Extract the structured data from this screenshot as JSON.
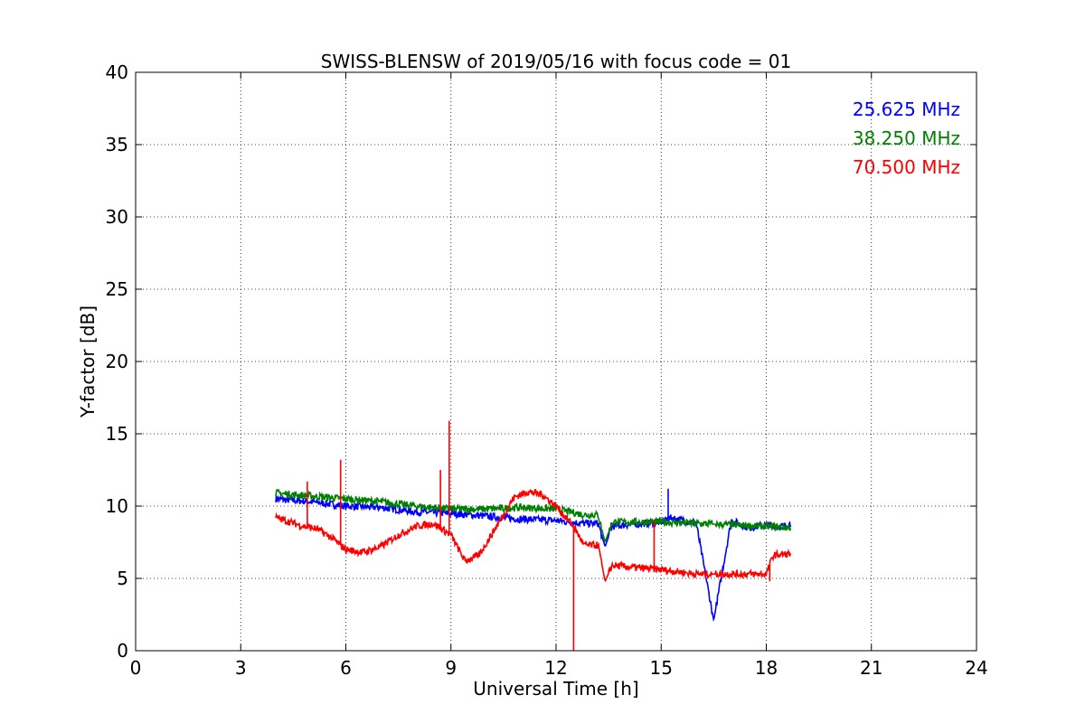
{
  "chart_data": {
    "type": "line",
    "title": "SWISS-BLENSW of 2019/05/16 with focus code = 01",
    "xlabel": "Universal Time [h]",
    "ylabel": "Y-factor [dB]",
    "xlim": [
      0,
      24
    ],
    "ylim": [
      0,
      40
    ],
    "xticks": [
      0,
      3,
      6,
      9,
      12,
      15,
      18,
      21,
      24
    ],
    "yticks": [
      0,
      5,
      10,
      15,
      20,
      25,
      30,
      35,
      40
    ],
    "grid": true,
    "legend_position": "top-right",
    "series": [
      {
        "name": "25.625 MHz",
        "color": "#0000ff",
        "x": [
          4.0,
          5.0,
          6.0,
          7.0,
          8.0,
          9.0,
          10.0,
          11.0,
          12.0,
          12.8,
          13.2,
          13.4,
          13.6,
          14.0,
          15.0,
          15.3,
          16.0,
          16.5,
          17.0,
          17.5,
          18.0,
          18.5,
          18.7
        ],
        "y": [
          10.5,
          10.3,
          10.0,
          9.9,
          9.6,
          9.5,
          9.3,
          9.1,
          9.0,
          8.8,
          8.8,
          7.2,
          8.6,
          8.7,
          8.9,
          9.2,
          8.8,
          2.1,
          9.0,
          8.5,
          8.7,
          8.6,
          8.8
        ]
      },
      {
        "name": "38.250 MHz",
        "color": "#008000",
        "x": [
          4.0,
          5.0,
          6.0,
          7.0,
          8.0,
          9.0,
          10.0,
          11.0,
          12.0,
          12.8,
          13.2,
          13.4,
          13.6,
          14.0,
          15.0,
          16.0,
          17.0,
          18.0,
          18.7
        ],
        "y": [
          10.9,
          10.7,
          10.5,
          10.3,
          10.0,
          9.8,
          9.8,
          9.9,
          9.8,
          9.4,
          9.4,
          7.5,
          8.9,
          8.9,
          8.9,
          8.8,
          8.7,
          8.6,
          8.5
        ]
      },
      {
        "name": "70.500 MHz",
        "color": "#ff0000",
        "x": [
          4.0,
          4.8,
          5.2,
          5.6,
          6.0,
          6.5,
          7.0,
          7.5,
          8.0,
          8.5,
          9.0,
          9.4,
          9.8,
          10.3,
          10.8,
          11.2,
          11.6,
          12.0,
          12.5,
          12.8,
          13.2,
          13.4,
          13.6,
          14.0,
          15.0,
          16.0,
          17.0,
          18.0,
          18.2,
          18.7
        ],
        "y": [
          9.2,
          8.6,
          8.4,
          7.8,
          7.0,
          6.8,
          7.2,
          8.0,
          8.6,
          8.8,
          8.0,
          6.2,
          6.6,
          8.6,
          10.6,
          11.0,
          10.8,
          10.0,
          8.6,
          7.3,
          7.3,
          4.8,
          5.9,
          5.8,
          5.6,
          5.3,
          5.3,
          5.3,
          6.6,
          6.7
        ]
      }
    ],
    "spikes": [
      {
        "series": 2,
        "x": 4.9,
        "y": 11.7
      },
      {
        "series": 2,
        "x": 5.85,
        "y": 13.2
      },
      {
        "series": 2,
        "x": 8.7,
        "y": 12.5
      },
      {
        "series": 2,
        "x": 8.95,
        "y": 15.9
      },
      {
        "series": 2,
        "x": 12.5,
        "y": 0.0
      },
      {
        "series": 2,
        "x": 14.8,
        "y": 9.0
      },
      {
        "series": 0,
        "x": 15.2,
        "y": 11.2
      },
      {
        "series": 0,
        "x": 16.5,
        "y": 2.1
      },
      {
        "series": 2,
        "x": 18.1,
        "y": 4.8
      }
    ]
  }
}
